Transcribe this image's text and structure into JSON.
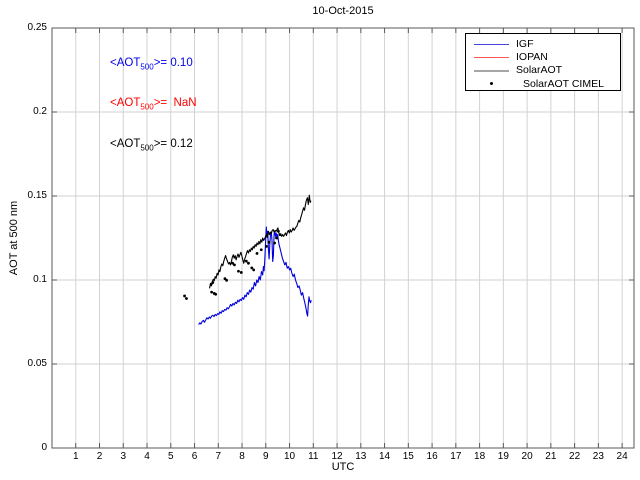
{
  "figure": {
    "title": "10-Oct-2015",
    "xlabel": "UTC",
    "ylabel": "AOT at 500 nm"
  },
  "annotations": [
    {
      "series": "igf",
      "prefix": "<AOT",
      "sub": "500",
      "suffix": ">= 0.10",
      "color": "#0000ee"
    },
    {
      "series": "iopan",
      "prefix": "<AOT",
      "sub": "500",
      "suffix": ">=  NaN",
      "color": "#ff0000"
    },
    {
      "series": "solaraot",
      "prefix": "<AOT",
      "sub": "500",
      "suffix": ">= 0.12",
      "color": "#000000"
    }
  ],
  "legend": {
    "items": [
      {
        "label": "IGF",
        "type": "line",
        "color": "#4444dd",
        "weight": 1
      },
      {
        "label": "IOPAN",
        "type": "line",
        "color": "#ff5555",
        "weight": 1
      },
      {
        "label": "SolarAOT",
        "type": "line",
        "color": "#a6a6a6",
        "weight": 2
      },
      {
        "label": "SolarAOT CIMEL",
        "type": "dot",
        "color": "#000000",
        "indent": 7
      }
    ]
  },
  "chart_data": {
    "type": "line",
    "title": "10-Oct-2015",
    "xlabel": "UTC",
    "ylabel": "AOT at 500 nm",
    "xlim": [
      0,
      24.5
    ],
    "ylim": [
      0,
      0.25
    ],
    "x_ticks": [
      1,
      2,
      3,
      4,
      5,
      6,
      7,
      8,
      9,
      10,
      11,
      12,
      13,
      14,
      15,
      16,
      17,
      18,
      19,
      20,
      21,
      22,
      23,
      24
    ],
    "y_ticks": [
      {
        "v": 0,
        "label": "0"
      },
      {
        "v": 0.05,
        "label": "0.05"
      },
      {
        "v": 0.1,
        "label": "0.1"
      },
      {
        "v": 0.15,
        "label": "0.15"
      },
      {
        "v": 0.2,
        "label": "0.2"
      },
      {
        "v": 0.25,
        "label": "0.25"
      }
    ],
    "grid": true,
    "grid_color": "#d2d2d2",
    "axis_color": "#5a5a5a",
    "legend_position": "top-right",
    "means": {
      "IGF": "0.10",
      "IOPAN": "NaN",
      "SolarAOT": "0.12"
    },
    "series": [
      {
        "name": "IGF",
        "color": "#0000dd",
        "style": "line",
        "points": [
          [
            6.17,
            0.0735
          ],
          [
            6.22,
            0.0745
          ],
          [
            6.27,
            0.0738
          ],
          [
            6.32,
            0.0752
          ],
          [
            6.37,
            0.076
          ],
          [
            6.42,
            0.0748
          ],
          [
            6.47,
            0.0762
          ],
          [
            6.52,
            0.0775
          ],
          [
            6.57,
            0.0768
          ],
          [
            6.62,
            0.078
          ],
          [
            6.67,
            0.0772
          ],
          [
            6.72,
            0.0785
          ],
          [
            6.77,
            0.079
          ],
          [
            6.82,
            0.0782
          ],
          [
            6.87,
            0.0795
          ],
          [
            6.92,
            0.0788
          ],
          [
            6.97,
            0.08
          ],
          [
            7.02,
            0.0795
          ],
          [
            7.07,
            0.081
          ],
          [
            7.12,
            0.0802
          ],
          [
            7.17,
            0.0818
          ],
          [
            7.22,
            0.0812
          ],
          [
            7.27,
            0.0825
          ],
          [
            7.32,
            0.082
          ],
          [
            7.37,
            0.0835
          ],
          [
            7.42,
            0.0828
          ],
          [
            7.47,
            0.084
          ],
          [
            7.52,
            0.0855
          ],
          [
            7.57,
            0.0845
          ],
          [
            7.62,
            0.086
          ],
          [
            7.67,
            0.0852
          ],
          [
            7.72,
            0.0868
          ],
          [
            7.77,
            0.086
          ],
          [
            7.82,
            0.088
          ],
          [
            7.87,
            0.087
          ],
          [
            7.92,
            0.0885
          ],
          [
            7.97,
            0.0878
          ],
          [
            8.02,
            0.0895
          ],
          [
            8.07,
            0.0885
          ],
          [
            8.12,
            0.091
          ],
          [
            8.17,
            0.09
          ],
          [
            8.22,
            0.0925
          ],
          [
            8.27,
            0.0915
          ],
          [
            8.32,
            0.094
          ],
          [
            8.37,
            0.0928
          ],
          [
            8.42,
            0.0955
          ],
          [
            8.47,
            0.0945
          ],
          [
            8.52,
            0.0985
          ],
          [
            8.57,
            0.0965
          ],
          [
            8.62,
            0.1
          ],
          [
            8.67,
            0.0985
          ],
          [
            8.72,
            0.102
          ],
          [
            8.77,
            0.1
          ],
          [
            8.82,
            0.105
          ],
          [
            8.87,
            0.103
          ],
          [
            8.9,
            0.108
          ],
          [
            8.93,
            0.1055
          ],
          [
            8.96,
            0.112
          ],
          [
            8.99,
            0.123
          ],
          [
            9.02,
            0.1315
          ],
          [
            9.05,
            0.1255
          ],
          [
            9.08,
            0.129
          ],
          [
            9.11,
            0.1185
          ],
          [
            9.14,
            0.1125
          ],
          [
            9.17,
            0.121
          ],
          [
            9.2,
            0.127
          ],
          [
            9.23,
            0.1285
          ],
          [
            9.26,
            0.1235
          ],
          [
            9.29,
            0.111
          ],
          [
            9.32,
            0.1145
          ],
          [
            9.35,
            0.1275
          ],
          [
            9.38,
            0.129
          ],
          [
            9.41,
            0.126
          ],
          [
            9.44,
            0.128
          ],
          [
            9.47,
            0.1245
          ],
          [
            9.5,
            0.127
          ],
          [
            9.53,
            0.1235
          ],
          [
            9.56,
            0.121
          ],
          [
            9.6,
            0.119
          ],
          [
            9.65,
            0.116
          ],
          [
            9.7,
            0.113
          ],
          [
            9.75,
            0.111
          ],
          [
            9.8,
            0.109
          ],
          [
            9.85,
            0.1105
          ],
          [
            9.9,
            0.107
          ],
          [
            9.95,
            0.108
          ],
          [
            10.0,
            0.106
          ],
          [
            10.05,
            0.107
          ],
          [
            10.1,
            0.104
          ],
          [
            10.15,
            0.102
          ],
          [
            10.2,
            0.1035
          ],
          [
            10.25,
            0.1
          ],
          [
            10.3,
            0.098
          ],
          [
            10.35,
            0.0955
          ],
          [
            10.4,
            0.0965
          ],
          [
            10.45,
            0.094
          ],
          [
            10.5,
            0.091
          ],
          [
            10.55,
            0.0925
          ],
          [
            10.6,
            0.089
          ],
          [
            10.65,
            0.086
          ],
          [
            10.7,
            0.0825
          ],
          [
            10.73,
            0.08
          ],
          [
            10.76,
            0.0785
          ],
          [
            10.79,
            0.0855
          ],
          [
            10.82,
            0.09
          ],
          [
            10.85,
            0.0875
          ],
          [
            10.88,
            0.0865
          ],
          [
            10.91,
            0.088
          ]
        ]
      },
      {
        "name": "IOPAN",
        "color": "#ff0000",
        "style": "line",
        "points": []
      },
      {
        "name": "SolarAOT",
        "color": "#000000",
        "style": "line",
        "points": [
          [
            6.63,
            0.095
          ],
          [
            6.67,
            0.0975
          ],
          [
            6.71,
            0.0965
          ],
          [
            6.75,
            0.099
          ],
          [
            6.79,
            0.1005
          ],
          [
            6.83,
            0.0995
          ],
          [
            6.87,
            0.102
          ],
          [
            6.91,
            0.101
          ],
          [
            6.95,
            0.104
          ],
          [
            6.99,
            0.103
          ],
          [
            7.03,
            0.106
          ],
          [
            7.07,
            0.105
          ],
          [
            7.11,
            0.108
          ],
          [
            7.15,
            0.1095
          ],
          [
            7.19,
            0.1085
          ],
          [
            7.23,
            0.111
          ],
          [
            7.27,
            0.113
          ],
          [
            7.31,
            0.1145
          ],
          [
            7.35,
            0.1125
          ],
          [
            7.39,
            0.111
          ],
          [
            7.43,
            0.1095
          ],
          [
            7.47,
            0.1105
          ],
          [
            7.51,
            0.109
          ],
          [
            7.55,
            0.111
          ],
          [
            7.59,
            0.1135
          ],
          [
            7.63,
            0.115
          ],
          [
            7.67,
            0.113
          ],
          [
            7.71,
            0.1145
          ],
          [
            7.75,
            0.112
          ],
          [
            7.79,
            0.114
          ],
          [
            7.83,
            0.1155
          ],
          [
            7.87,
            0.1135
          ],
          [
            7.91,
            0.115
          ],
          [
            7.95,
            0.1165
          ],
          [
            7.99,
            0.1145
          ],
          [
            8.03,
            0.112
          ],
          [
            8.07,
            0.11
          ],
          [
            8.11,
            0.1125
          ],
          [
            8.15,
            0.114
          ],
          [
            8.19,
            0.116
          ],
          [
            8.23,
            0.1175
          ],
          [
            8.27,
            0.116
          ],
          [
            8.31,
            0.118
          ],
          [
            8.35,
            0.117
          ],
          [
            8.39,
            0.119
          ],
          [
            8.43,
            0.118
          ],
          [
            8.47,
            0.12
          ],
          [
            8.51,
            0.119
          ],
          [
            8.55,
            0.121
          ],
          [
            8.59,
            0.12
          ],
          [
            8.63,
            0.122
          ],
          [
            8.67,
            0.121
          ],
          [
            8.71,
            0.123
          ],
          [
            8.75,
            0.1215
          ],
          [
            8.79,
            0.124
          ],
          [
            8.83,
            0.1225
          ],
          [
            8.87,
            0.125
          ],
          [
            8.91,
            0.1235
          ],
          [
            8.95,
            0.1245
          ],
          [
            8.99,
            0.126
          ],
          [
            9.03,
            0.127
          ],
          [
            9.07,
            0.1255
          ],
          [
            9.11,
            0.129
          ],
          [
            9.15,
            0.127
          ],
          [
            9.19,
            0.1285
          ],
          [
            9.23,
            0.1275
          ],
          [
            9.27,
            0.1295
          ],
          [
            9.31,
            0.13
          ],
          [
            9.35,
            0.1285
          ],
          [
            9.39,
            0.1295
          ],
          [
            9.43,
            0.129
          ],
          [
            9.47,
            0.13
          ],
          [
            9.51,
            0.131
          ],
          [
            9.55,
            0.128
          ],
          [
            9.59,
            0.1265
          ],
          [
            9.63,
            0.1275
          ],
          [
            9.67,
            0.126
          ],
          [
            9.71,
            0.127
          ],
          [
            9.75,
            0.126
          ],
          [
            9.79,
            0.127
          ],
          [
            9.83,
            0.128
          ],
          [
            9.87,
            0.1265
          ],
          [
            9.91,
            0.1285
          ],
          [
            9.95,
            0.1295
          ],
          [
            9.99,
            0.128
          ],
          [
            10.03,
            0.13
          ],
          [
            10.07,
            0.1285
          ],
          [
            10.11,
            0.1295
          ],
          [
            10.15,
            0.131
          ],
          [
            10.19,
            0.1295
          ],
          [
            10.23,
            0.1305
          ],
          [
            10.27,
            0.1315
          ],
          [
            10.31,
            0.132
          ],
          [
            10.35,
            0.134
          ],
          [
            10.39,
            0.1355
          ],
          [
            10.43,
            0.1345
          ],
          [
            10.47,
            0.137
          ],
          [
            10.51,
            0.139
          ],
          [
            10.55,
            0.141
          ],
          [
            10.59,
            0.143
          ],
          [
            10.63,
            0.1415
          ],
          [
            10.67,
            0.145
          ],
          [
            10.71,
            0.1475
          ],
          [
            10.75,
            0.149
          ],
          [
            10.79,
            0.145
          ],
          [
            10.83,
            0.1505
          ],
          [
            10.87,
            0.1462
          ],
          [
            10.9,
            0.1472
          ]
        ]
      },
      {
        "name": "SolarAOT CIMEL",
        "color": "#000000",
        "style": "dots",
        "points": [
          [
            5.58,
            0.0905
          ],
          [
            5.66,
            0.089
          ],
          [
            6.7,
            0.0975
          ],
          [
            6.77,
            0.0985
          ],
          [
            6.72,
            0.0928
          ],
          [
            6.83,
            0.092
          ],
          [
            6.89,
            0.0915
          ],
          [
            7.28,
            0.1008
          ],
          [
            7.35,
            0.0998
          ],
          [
            7.6,
            0.11
          ],
          [
            7.68,
            0.109
          ],
          [
            7.85,
            0.1052
          ],
          [
            7.97,
            0.1045
          ],
          [
            8.18,
            0.1112
          ],
          [
            8.27,
            0.11
          ],
          [
            8.41,
            0.1072
          ],
          [
            8.49,
            0.106
          ],
          [
            8.63,
            0.1158
          ],
          [
            8.81,
            0.118
          ],
          [
            9.03,
            0.12
          ],
          [
            9.13,
            0.1225
          ],
          [
            9.37,
            0.122
          ],
          [
            9.45,
            0.125
          ],
          [
            9.53,
            0.129
          ],
          [
            9.6,
            0.127
          ]
        ]
      }
    ]
  }
}
